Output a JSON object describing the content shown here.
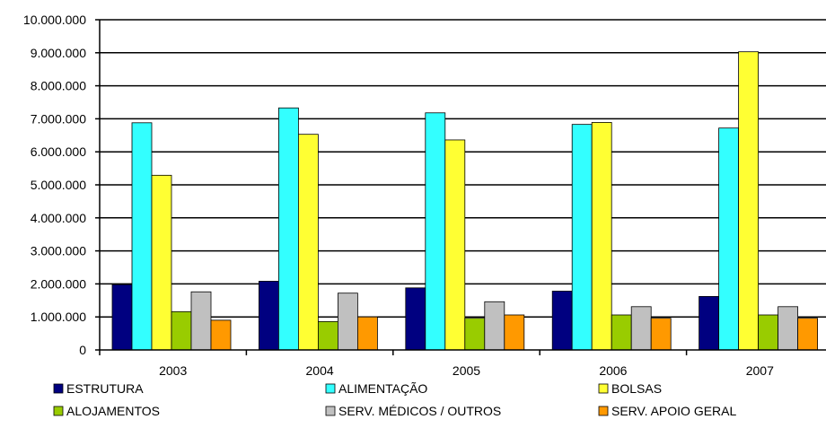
{
  "chart_data": {
    "type": "bar",
    "title": "",
    "xlabel": "",
    "ylabel": "",
    "categories": [
      "2003",
      "2004",
      "2005",
      "2006",
      "2007"
    ],
    "ylim": [
      0,
      10000000
    ],
    "ytick_values": [
      0,
      1000000,
      2000000,
      3000000,
      4000000,
      5000000,
      6000000,
      7000000,
      8000000,
      9000000,
      10000000
    ],
    "ytick_labels": [
      "0",
      "1.000.000",
      "2.000.000",
      "3.000.000",
      "4.000.000",
      "5.000.000",
      "6.000.000",
      "7.000.000",
      "8.000.000",
      "9.000.000",
      "10.000.000"
    ],
    "grid": true,
    "legend_position": "bottom",
    "series": [
      {
        "name": "ESTRUTURA",
        "color": "#000080",
        "values": [
          1980000,
          2080000,
          1880000,
          1780000,
          1620000
        ]
      },
      {
        "name": "ALIMENTAÇÃO",
        "color": "#33FFFF",
        "values": [
          6880000,
          7330000,
          7180000,
          6830000,
          6720000
        ]
      },
      {
        "name": "BOLSAS",
        "color": "#FFFF33",
        "values": [
          5290000,
          6530000,
          6360000,
          6890000,
          9030000
        ]
      },
      {
        "name": "ALOJAMENTOS",
        "color": "#99CC00",
        "values": [
          1160000,
          860000,
          960000,
          1060000,
          1060000
        ]
      },
      {
        "name": "SERV. MÉDICOS / OUTROS",
        "color": "#C0C0C0",
        "values": [
          1760000,
          1720000,
          1460000,
          1310000,
          1310000
        ]
      },
      {
        "name": "SERV. APOIO GERAL",
        "color": "#FF9900",
        "values": [
          900000,
          1000000,
          1060000,
          960000,
          960000
        ]
      }
    ]
  }
}
